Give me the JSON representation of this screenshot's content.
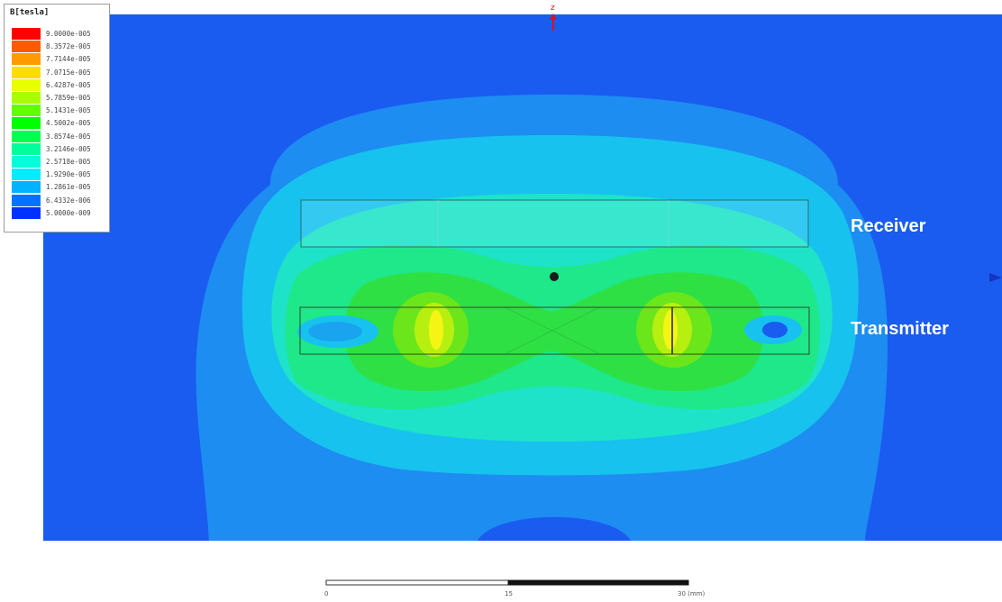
{
  "legend": {
    "title": "B[tesla]",
    "entries": [
      {
        "label": "9.0000e-005",
        "color": "#ff0000"
      },
      {
        "label": "8.3572e-005",
        "color": "#ff5a00"
      },
      {
        "label": "7.7144e-005",
        "color": "#ff9a00"
      },
      {
        "label": "7.0715e-005",
        "color": "#ffdc00"
      },
      {
        "label": "6.4287e-005",
        "color": "#e8ff00"
      },
      {
        "label": "5.7859e-005",
        "color": "#a8ff00"
      },
      {
        "label": "5.1431e-005",
        "color": "#62ff00"
      },
      {
        "label": "4.5002e-005",
        "color": "#00ff00"
      },
      {
        "label": "3.8574e-005",
        "color": "#00ff52"
      },
      {
        "label": "3.2146e-005",
        "color": "#00ff9a"
      },
      {
        "label": "2.5718e-005",
        "color": "#00ffd8"
      },
      {
        "label": "1.9290e-005",
        "color": "#00ecff"
      },
      {
        "label": "1.2861e-005",
        "color": "#00b2ff"
      },
      {
        "label": "6.4332e-006",
        "color": "#0074ff"
      },
      {
        "label": "5.0000e-009",
        "color": "#0032ff"
      }
    ]
  },
  "axis_marker": "z",
  "labels": {
    "receiver": "Receiver",
    "transmitter": "Transmitter"
  },
  "scale_bar": {
    "ticks": [
      "0",
      "15",
      "30 (mm)"
    ]
  },
  "colors": {
    "background_field": "#1a5cf0",
    "level1": "#1d8df2",
    "level2": "#17c2ee",
    "level3": "#1ee3c8",
    "level4": "#1fe88a",
    "level5": "#2ee043",
    "level6": "#6be61a",
    "level7": "#b7f010",
    "level8": "#f5f515"
  }
}
